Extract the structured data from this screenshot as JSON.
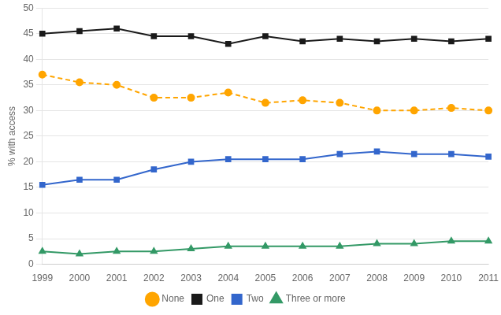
{
  "chart_data": {
    "type": "line",
    "categories": [
      "1999",
      "2000",
      "2001",
      "2002",
      "2003",
      "2004",
      "2005",
      "2006",
      "2007",
      "2008",
      "2009",
      "2010",
      "2011"
    ],
    "series": [
      {
        "name": "None",
        "color": "#FFA500",
        "marker": "circle",
        "line_style": "dashed",
        "values": [
          37.0,
          35.5,
          35.0,
          32.5,
          32.5,
          33.5,
          31.5,
          32.0,
          31.5,
          30.0,
          30.0,
          30.5,
          30.0
        ]
      },
      {
        "name": "One",
        "color": "#1a1a1a",
        "marker": "square",
        "line_style": "solid",
        "values": [
          45.0,
          45.5,
          46.0,
          44.5,
          44.5,
          43.0,
          44.5,
          43.5,
          44.0,
          43.5,
          44.0,
          43.5,
          44.0
        ]
      },
      {
        "name": "Two",
        "color": "#3366CC",
        "marker": "square",
        "line_style": "solid",
        "values": [
          15.5,
          16.5,
          16.5,
          18.5,
          20.0,
          20.5,
          20.5,
          20.5,
          21.5,
          22.0,
          21.5,
          21.5,
          21.0
        ]
      },
      {
        "name": "Three or more",
        "color": "#339966",
        "marker": "triangle",
        "line_style": "solid",
        "values": [
          2.5,
          2.0,
          2.5,
          2.5,
          3.0,
          3.5,
          3.5,
          3.5,
          3.5,
          4.0,
          4.0,
          4.5,
          4.5
        ]
      }
    ],
    "y_label": "% with access",
    "ylim": [
      0,
      50
    ],
    "yticks": [
      0,
      5,
      10,
      15,
      20,
      25,
      30,
      35,
      40,
      45,
      50
    ],
    "grid": true,
    "legend": "bottom"
  }
}
